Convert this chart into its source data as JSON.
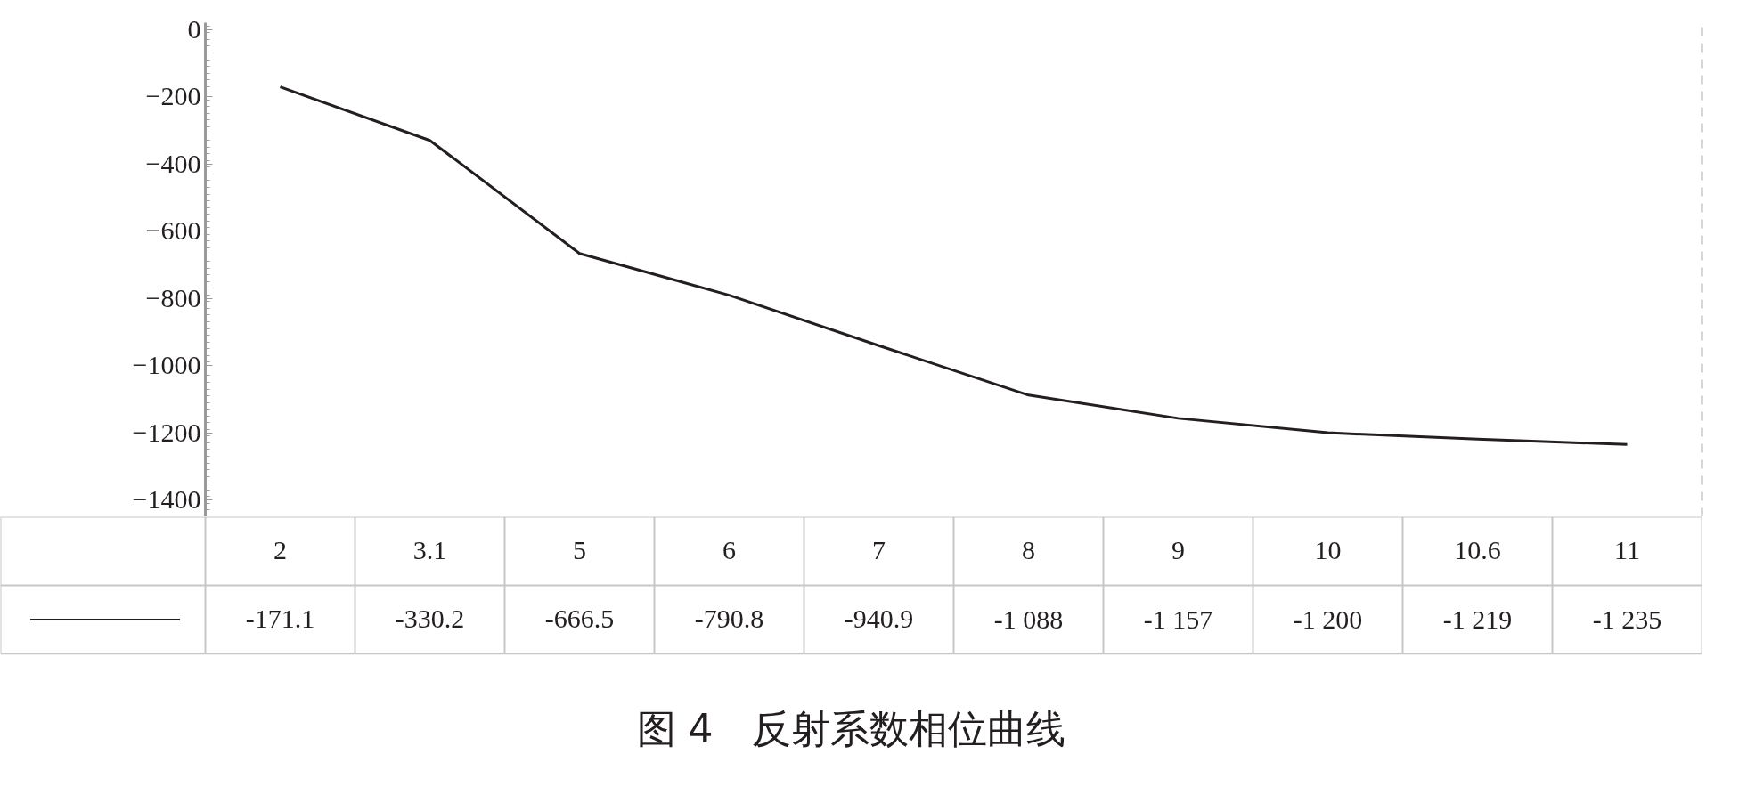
{
  "chart_data": {
    "type": "line",
    "title": "图 4　反射系数相位曲线",
    "categories": [
      "2",
      "3.1",
      "5",
      "6",
      "7",
      "8",
      "9",
      "10",
      "10.6",
      "11"
    ],
    "series": [
      {
        "color": "#231f20",
        "values": [
          -171.1,
          -330.2,
          -666.5,
          -790.8,
          -940.9,
          -1088,
          -1157,
          -1200,
          -1219,
          -1235
        ],
        "value_labels": [
          "-171.1",
          "-330.2",
          "-666.5",
          "-790.8",
          "-940.9",
          "-1 088",
          "-1 157",
          "-1 200",
          "-1 219",
          "-1 235"
        ]
      }
    ],
    "ylim": [
      -1450,
      20
    ],
    "yticks": [
      0,
      -200,
      -400,
      -600,
      -800,
      -1000,
      -1200,
      -1400
    ],
    "grid": false,
    "marker": "none",
    "line_style": "solid"
  }
}
